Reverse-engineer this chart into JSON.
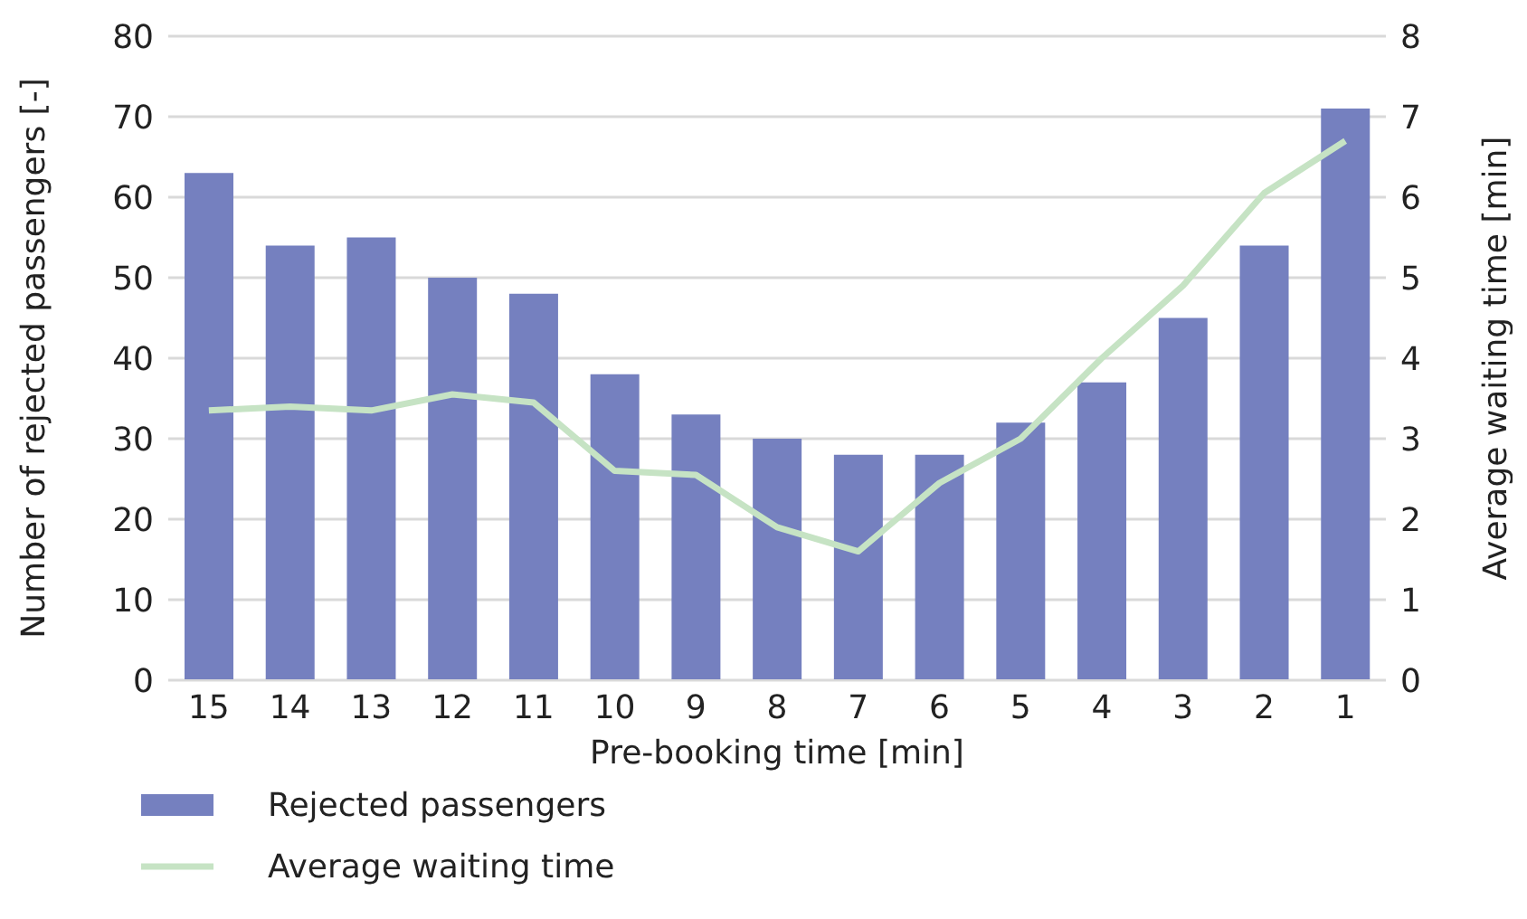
{
  "chart_data": {
    "type": "bar",
    "xlabel": "Pre-booking time [min]",
    "ylabel": "Number of rejected passengers [-]",
    "y2label": "Average waiting time [min]",
    "categories": [
      "15",
      "14",
      "13",
      "12",
      "11",
      "10",
      "9",
      "8",
      "7",
      "6",
      "5",
      "4",
      "3",
      "2",
      "1"
    ],
    "series": [
      {
        "name": "Rejected passengers",
        "color": "#7580bf",
        "values": [
          63,
          54,
          55,
          50,
          48,
          38,
          33,
          30,
          28,
          28,
          32,
          37,
          45,
          54,
          71
        ]
      },
      {
        "name": "Average waiting time",
        "type": "line",
        "axis": "y2",
        "color": "#c6e3c4",
        "values": [
          3.35,
          3.4,
          3.35,
          3.55,
          3.45,
          2.6,
          2.55,
          1.9,
          1.6,
          2.45,
          3.0,
          4.0,
          4.9,
          6.05,
          6.7
        ]
      }
    ],
    "ylim": [
      0,
      80
    ],
    "yticks": [
      0,
      10,
      20,
      30,
      40,
      50,
      60,
      70,
      80
    ],
    "y2lim": [
      0,
      8
    ],
    "y2ticks": [
      0,
      1,
      2,
      3,
      4,
      5,
      6,
      7,
      8
    ],
    "grid": "y",
    "legend": "bottom left",
    "marker": "none"
  }
}
